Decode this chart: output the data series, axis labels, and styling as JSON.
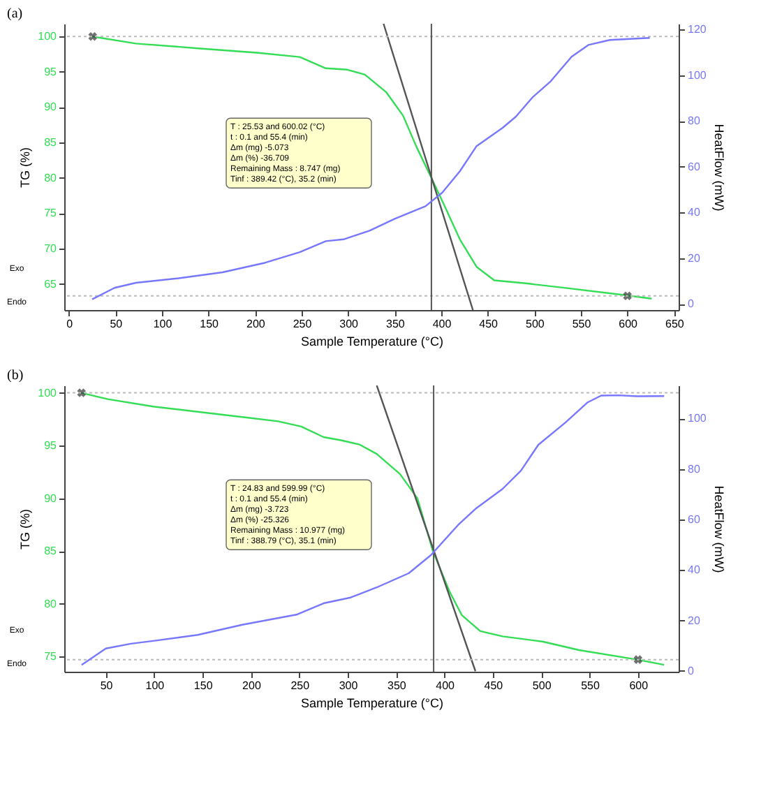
{
  "chart_data": [
    {
      "type": "line",
      "title": "(a)",
      "xlabel": "Sample Temperature (°C)",
      "ylabel": "TG (%)",
      "y2label": "HeatFlow (mW)",
      "xlim": [
        -5,
        655
      ],
      "xticks": [
        0,
        50,
        100,
        150,
        200,
        250,
        300,
        350,
        400,
        450,
        500,
        550,
        600,
        650
      ],
      "ylim": [
        61.3,
        101.8
      ],
      "yticks": [
        65,
        70,
        75,
        80,
        85,
        90,
        95,
        100
      ],
      "y2lim": [
        -2.7,
        122.5
      ],
      "y2ticks": [
        0,
        20,
        40,
        60,
        80,
        100,
        120
      ],
      "grid": false,
      "line_style": "solid",
      "series": [
        {
          "color": "#33dd55",
          "x": [
            25,
            72,
            141,
            202,
            248,
            276,
            299,
            318,
            341,
            359,
            373,
            389,
            403,
            420,
            438,
            457,
            489,
            535,
            598,
            626
          ],
          "values": [
            100,
            99.0,
            98.3,
            97.7,
            97.1,
            95.5,
            95.3,
            94.6,
            92.1,
            88.8,
            84.5,
            80.1,
            76.2,
            71.3,
            67.4,
            65.5,
            65.1,
            64.4,
            63.4,
            62.9
          ]
        },
        {
          "color": "#7777ff",
          "axis": "y2",
          "x": [
            25,
            49,
            72,
            118,
            165,
            211,
            248,
            276,
            295,
            323,
            350,
            383,
            401,
            420,
            438,
            466,
            480,
            498,
            517,
            540,
            558,
            581,
            624
          ],
          "values": [
            2.0,
            7.0,
            9.2,
            11.2,
            13.8,
            18.0,
            22.6,
            27.4,
            28.2,
            32.0,
            37.2,
            42.7,
            48.6,
            58.0,
            69.0,
            77.0,
            81.8,
            90.3,
            97.1,
            108.1,
            113.2,
            115.4,
            116.3
          ]
        },
        {
          "type": "line",
          "color": "#555555",
          "x": [
            338,
            434
          ],
          "values": [
            101.8,
            61.3
          ]
        },
        {
          "type": "scatter",
          "marker": "cross",
          "color": "#333333",
          "x": [
            25.53,
            600.02
          ],
          "values": [
            100,
            63.3
          ]
        }
      ],
      "ref_lines": [
        {
          "axis": "y",
          "value": 100,
          "color": "#bbbbbb",
          "line_style": "dotted"
        },
        {
          "axis": "y",
          "value": 63.3,
          "color": "#bbbbbb",
          "line_style": "dotted"
        },
        {
          "axis": "x",
          "value": 389.42,
          "color": "#555555",
          "line_style": "solid"
        }
      ],
      "annotations": [
        "T : 25.53 and 600.02 (°C)",
        "t : 0.1 and 55.4 (min)",
        "Δm (mg) -5.073",
        "Δm (%) -36.709",
        "Remaining Mass : 8.747 (mg)",
        "Tinf : 389.42 (°C), 35.2 (min)",
        "Exo",
        "Endo"
      ]
    },
    {
      "type": "line",
      "title": "(b)",
      "xlabel": "Sample Temperature (°C)",
      "ylabel": "TG (%)",
      "y2label": "HeatFlow (mW)",
      "xlim": [
        7,
        642
      ],
      "xticks": [
        50,
        100,
        150,
        200,
        250,
        300,
        350,
        400,
        450,
        500,
        550,
        600
      ],
      "ylim": [
        73.55,
        100.7
      ],
      "yticks": [
        75,
        80,
        85,
        90,
        95,
        100
      ],
      "y2lim": [
        -0.3,
        113.1
      ],
      "y2ticks": [
        0,
        20,
        40,
        60,
        80,
        100
      ],
      "grid": false,
      "line_style": "solid",
      "series": [
        {
          "color": "#33dd55",
          "x": [
            24.6,
            52,
            99,
            145,
            191,
            228,
            252,
            275,
            293,
            312,
            330,
            354,
            372,
            388,
            405,
            418,
            437,
            460,
            502,
            539,
            599,
            627
          ],
          "values": [
            100,
            99.4,
            98.7,
            98.2,
            97.7,
            97.3,
            96.8,
            95.8,
            95.5,
            95.1,
            94.2,
            92.3,
            90.0,
            85.0,
            81.2,
            78.9,
            77.4,
            76.9,
            76.4,
            75.6,
            74.7,
            74.2
          ]
        },
        {
          "color": "#7777ff",
          "axis": "y2",
          "x": [
            25,
            50,
            76,
            99,
            145,
            191,
            247,
            275,
            303,
            330,
            363,
            386,
            414,
            432,
            460,
            479,
            497,
            525,
            548,
            562,
            580,
            599,
            627
          ],
          "values": [
            2.4,
            8.9,
            10.8,
            11.9,
            14.3,
            18.3,
            22.3,
            26.8,
            29.1,
            33.1,
            38.7,
            45.9,
            57.8,
            64.2,
            72.1,
            79.3,
            89.6,
            98.4,
            106.4,
            109.1,
            109.2,
            108.8,
            108.9
          ]
        },
        {
          "type": "line",
          "color": "#555555",
          "x": [
            330,
            432
          ],
          "values": [
            100.7,
            73.6
          ]
        },
        {
          "type": "scatter",
          "marker": "cross",
          "color": "#333333",
          "x": [
            24.83,
            599.99
          ],
          "values": [
            100,
            74.7
          ]
        }
      ],
      "ref_lines": [
        {
          "axis": "y",
          "value": 100,
          "color": "#bbbbbb",
          "line_style": "dotted"
        },
        {
          "axis": "y",
          "value": 74.7,
          "color": "#bbbbbb",
          "line_style": "dotted"
        },
        {
          "axis": "x",
          "value": 388.79,
          "color": "#555555",
          "line_style": "solid"
        }
      ],
      "annotations": [
        "T : 24.83 and 599.99 (°C)",
        "t : 0.1 and 55.4 (min)",
        "Δm (mg) -3.723",
        "Δm (%) -25.326",
        "Remaining Mass : 10.977 (mg)",
        "Tinf : 388.79 (°C), 35.1 (min)",
        "Exo",
        "Endo"
      ]
    }
  ]
}
